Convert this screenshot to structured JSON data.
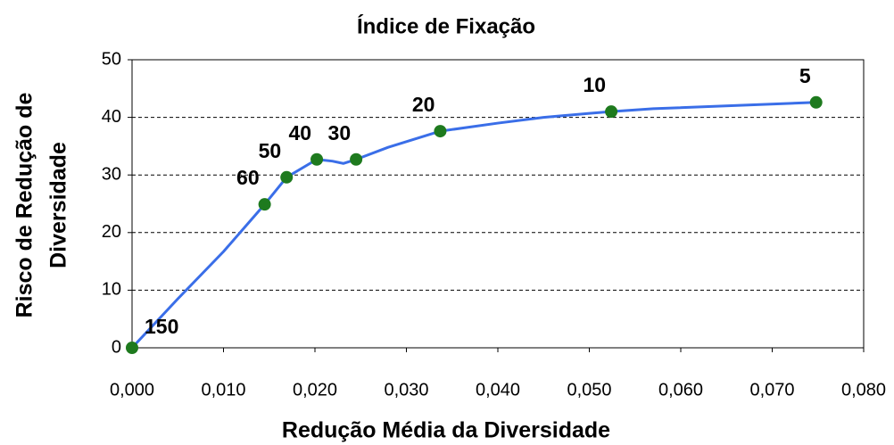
{
  "chart_data": {
    "type": "line",
    "title": "Índice de Fixação",
    "x_label": "Redução Média da Diversidade",
    "y_label": [
      "Risco de Redução de",
      "Diversidade"
    ],
    "xlim": [
      0,
      0.08
    ],
    "ylim": [
      0,
      50
    ],
    "xticks": [
      {
        "value": 0,
        "label": "0,000"
      },
      {
        "value": 0.01,
        "label": "0,010"
      },
      {
        "value": 0.02,
        "label": "0,020"
      },
      {
        "value": 0.03,
        "label": "0,030"
      },
      {
        "value": 0.04,
        "label": "0,040"
      },
      {
        "value": 0.05,
        "label": "0,050"
      },
      {
        "value": 0.06,
        "label": "0,060"
      },
      {
        "value": 0.07,
        "label": "0,070"
      },
      {
        "value": 0.08,
        "label": "0,080"
      }
    ],
    "yticks": [
      0,
      10,
      20,
      30,
      40,
      50
    ],
    "grid": true,
    "series": [
      {
        "color": "#3a6ee8",
        "x": [
          0,
          0.005,
          0.01,
          0.0145,
          0.0169,
          0.0202,
          0.0219,
          0.0231,
          0.0245,
          0.028,
          0.0337,
          0.04,
          0.045,
          0.05,
          0.0524,
          0.057,
          0.0748
        ],
        "values": [
          0,
          8.5,
          16.7,
          24.9,
          29.6,
          32.7,
          32.4,
          32.0,
          32.7,
          34.8,
          37.6,
          39.0,
          40.0,
          40.7,
          41.0,
          41.5,
          42.6
        ]
      },
      {
        "color": "#1e7a1e",
        "labels": [
          "150",
          "60",
          "50",
          "40",
          "30",
          "20",
          "10",
          "5"
        ],
        "x": [
          0,
          0.0145,
          0.0169,
          0.0202,
          0.0245,
          0.0337,
          0.0524,
          0.0748
        ],
        "values": [
          0,
          24.9,
          29.6,
          32.7,
          32.7,
          37.6,
          41.0,
          42.6
        ]
      }
    ]
  }
}
